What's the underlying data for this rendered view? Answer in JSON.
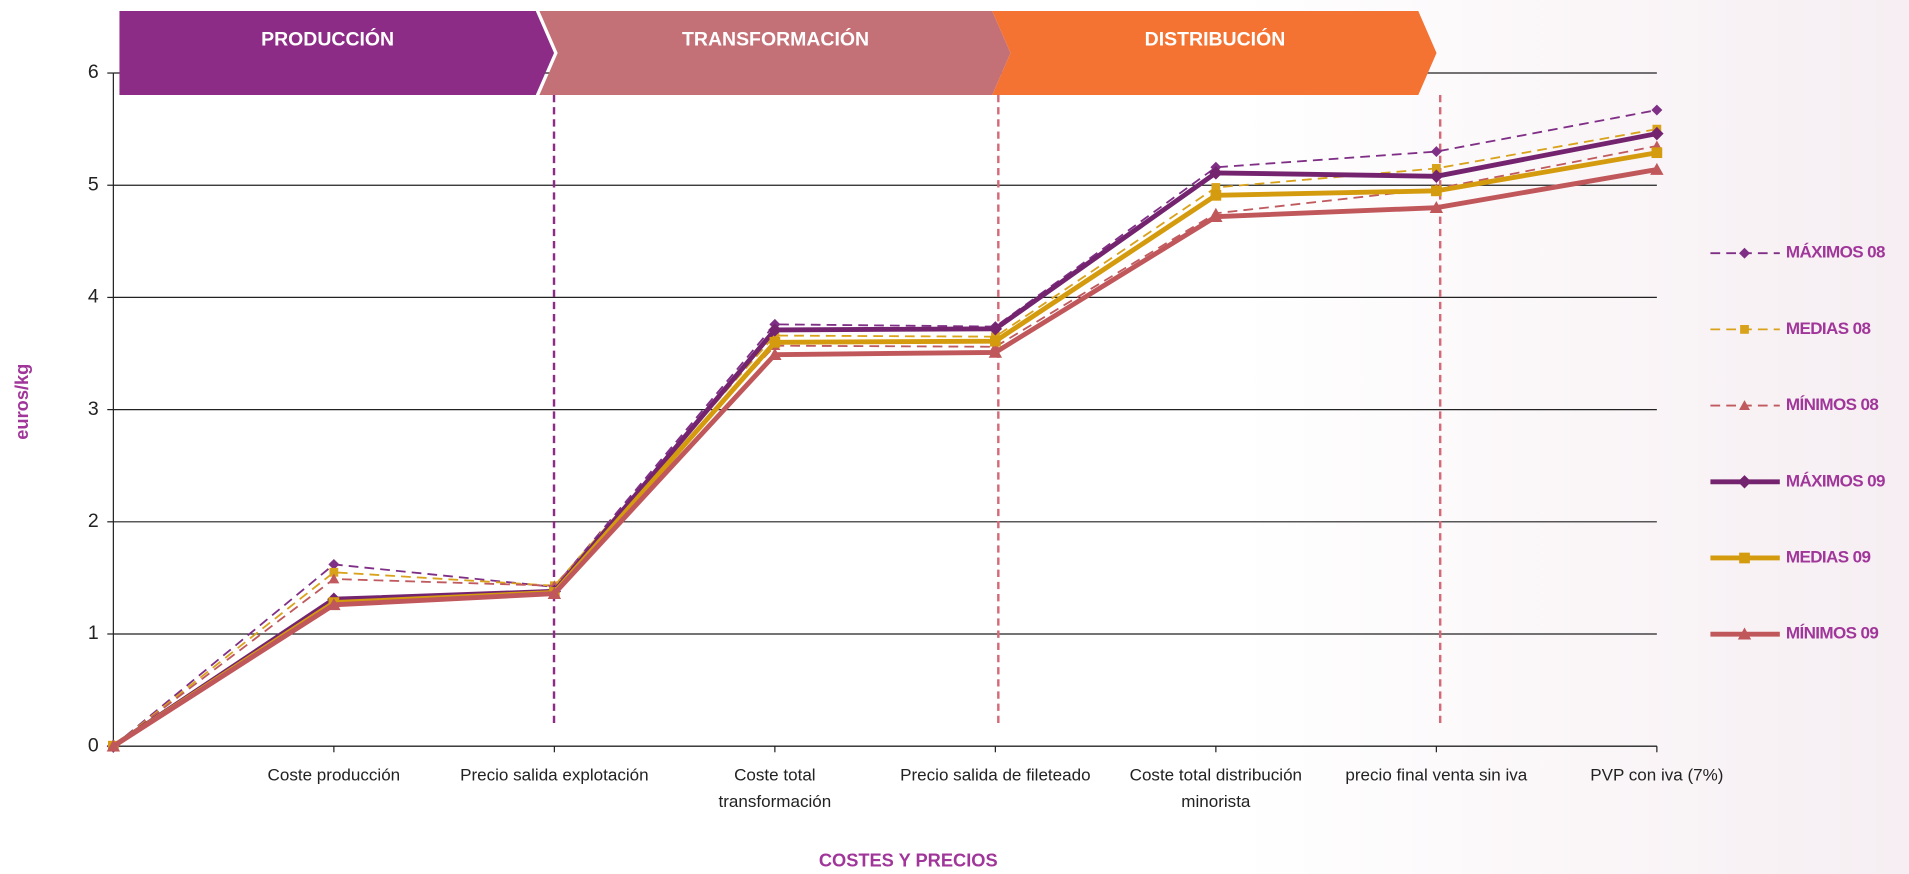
{
  "chart_data": {
    "type": "line",
    "stages": [
      {
        "label": "PRODUCCIÓN",
        "color": "#8c2c86"
      },
      {
        "label": "TRANSFORMACIÓN",
        "color": "#c47077"
      },
      {
        "label": "DISTRIBUCIÓN",
        "color": "#f57332"
      }
    ],
    "y_label": "euros/kg",
    "x_label": "COSTES Y PRECIOS",
    "categories": [
      null,
      "Coste producción",
      "Precio salida explotación",
      "Coste total\ntransformación",
      "Precio salida de fileteado",
      "Coste total distribución\nminorista",
      "precio final venta sin iva",
      "PVP con iva (7%)"
    ],
    "ylim": [
      0,
      6
    ],
    "yticks": [
      0,
      1,
      2,
      3,
      4,
      5,
      6
    ],
    "grid": true,
    "legend": "right",
    "series": [
      {
        "name": "MÁXIMOS 08",
        "color": "#7f2f86",
        "linestyle": "dashed",
        "marker": "diamond",
        "values": [
          0,
          1.62,
          1.42,
          3.76,
          3.74,
          5.16,
          5.3,
          5.67
        ]
      },
      {
        "name": "MEDIAS 08",
        "color": "#d9a21b",
        "linestyle": "dashed",
        "marker": "square",
        "values": [
          0,
          1.55,
          1.43,
          3.66,
          3.65,
          4.98,
          5.15,
          5.5
        ]
      },
      {
        "name": "MÍNIMOS 08",
        "color": "#c05a5e",
        "linestyle": "dashed",
        "marker": "triangle",
        "values": [
          0,
          1.49,
          1.43,
          3.57,
          3.56,
          4.75,
          4.97,
          5.35
        ]
      },
      {
        "name": "MÁXIMOS 09",
        "color": "#74246f",
        "linestyle": "solid",
        "marker": "diamond",
        "values": [
          0,
          1.31,
          1.38,
          3.71,
          3.72,
          5.11,
          5.08,
          5.46
        ]
      },
      {
        "name": "MEDIAS 09",
        "color": "#d49b0e",
        "linestyle": "solid",
        "marker": "square",
        "values": [
          0,
          1.28,
          1.37,
          3.6,
          3.61,
          4.91,
          4.95,
          5.29
        ]
      },
      {
        "name": "MÍNIMOS 09",
        "color": "#c0575b",
        "linestyle": "solid",
        "marker": "triangle",
        "values": [
          0,
          1.26,
          1.36,
          3.49,
          3.51,
          4.72,
          4.8,
          5.14
        ]
      }
    ]
  }
}
